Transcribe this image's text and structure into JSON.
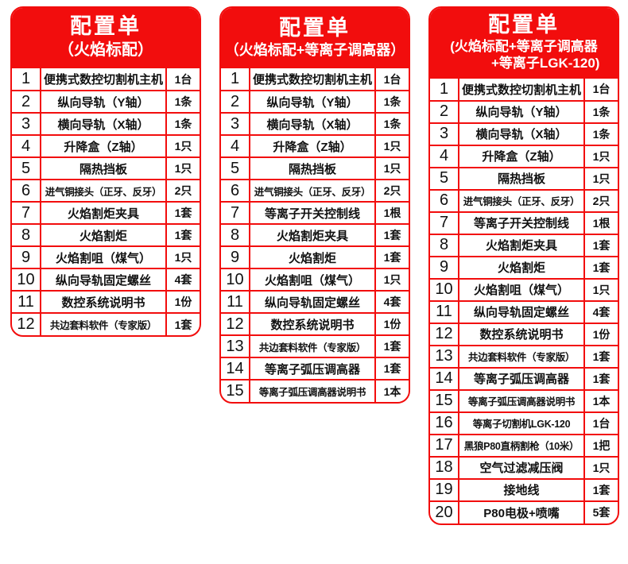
{
  "colors": {
    "accent_red": "#f20d0d",
    "text": "#111111",
    "background": "#ffffff"
  },
  "tables": [
    {
      "title": "配置单",
      "subtitle_lines": [
        "（火焰标配）"
      ],
      "rows": [
        [
          "1",
          "便携式数控切割机主机",
          "1台"
        ],
        [
          "2",
          "纵向导轨（Y轴）",
          "1条"
        ],
        [
          "3",
          "横向导轨（X轴）",
          "1条"
        ],
        [
          "4",
          "升降盒（Z轴）",
          "1只"
        ],
        [
          "5",
          "隔热挡板",
          "1只"
        ],
        [
          "6",
          "进气铜接头（正牙、反牙）",
          "2只"
        ],
        [
          "7",
          "火焰割炬夹具",
          "1套"
        ],
        [
          "8",
          "火焰割炬",
          "1套"
        ],
        [
          "9",
          "火焰割咀（煤气）",
          "1只"
        ],
        [
          "10",
          "纵向导轨固定螺丝",
          "4套"
        ],
        [
          "11",
          "数控系统说明书",
          "1份"
        ],
        [
          "12",
          "共边套料软件（专家版）",
          "1套"
        ]
      ]
    },
    {
      "title": "配置单",
      "subtitle_lines": [
        "（火焰标配+等离子调高器）"
      ],
      "rows": [
        [
          "1",
          "便携式数控切割机主机",
          "1台"
        ],
        [
          "2",
          "纵向导轨（Y轴）",
          "1条"
        ],
        [
          "3",
          "横向导轨（X轴）",
          "1条"
        ],
        [
          "4",
          "升降盒（Z轴）",
          "1只"
        ],
        [
          "5",
          "隔热挡板",
          "1只"
        ],
        [
          "6",
          "进气铜接头（正牙、反牙）",
          "2只"
        ],
        [
          "7",
          "等离子开关控制线",
          "1根"
        ],
        [
          "8",
          "火焰割炬夹具",
          "1套"
        ],
        [
          "9",
          "火焰割炬",
          "1套"
        ],
        [
          "10",
          "火焰割咀（煤气）",
          "1只"
        ],
        [
          "11",
          "纵向导轨固定螺丝",
          "4套"
        ],
        [
          "12",
          "数控系统说明书",
          "1份"
        ],
        [
          "13",
          "共边套料软件（专家版）",
          "1套"
        ],
        [
          "14",
          "等离子弧压调高器",
          "1套"
        ],
        [
          "15",
          "等离子弧压调高器说明书",
          "1本"
        ]
      ]
    },
    {
      "title": "配置单",
      "subtitle_lines": [
        "(火焰标配+等离子调高器",
        "+等离子LGK-120)"
      ],
      "rows": [
        [
          "1",
          "便携式数控切割机主机",
          "1台"
        ],
        [
          "2",
          "纵向导轨（Y轴）",
          "1条"
        ],
        [
          "3",
          "横向导轨（X轴）",
          "1条"
        ],
        [
          "4",
          "升降盒（Z轴）",
          "1只"
        ],
        [
          "5",
          "隔热挡板",
          "1只"
        ],
        [
          "6",
          "进气铜接头（正牙、反牙）",
          "2只"
        ],
        [
          "7",
          "等离子开关控制线",
          "1根"
        ],
        [
          "8",
          "火焰割炬夹具",
          "1套"
        ],
        [
          "9",
          "火焰割炬",
          "1套"
        ],
        [
          "10",
          "火焰割咀（煤气）",
          "1只"
        ],
        [
          "11",
          "纵向导轨固定螺丝",
          "4套"
        ],
        [
          "12",
          "数控系统说明书",
          "1份"
        ],
        [
          "13",
          "共边套料软件（专家版）",
          "1套"
        ],
        [
          "14",
          "等离子弧压调高器",
          "1套"
        ],
        [
          "15",
          "等离子弧压调高器说明书",
          "1本"
        ],
        [
          "16",
          "等离子切割机LGK-120",
          "1台"
        ],
        [
          "17",
          "黑狼P80直柄割枪（10米）",
          "1把"
        ],
        [
          "18",
          "空气过滤减压阀",
          "1只"
        ],
        [
          "19",
          "接地线",
          "1套"
        ],
        [
          "20",
          "P80电极+喷嘴",
          "5套"
        ]
      ]
    }
  ]
}
